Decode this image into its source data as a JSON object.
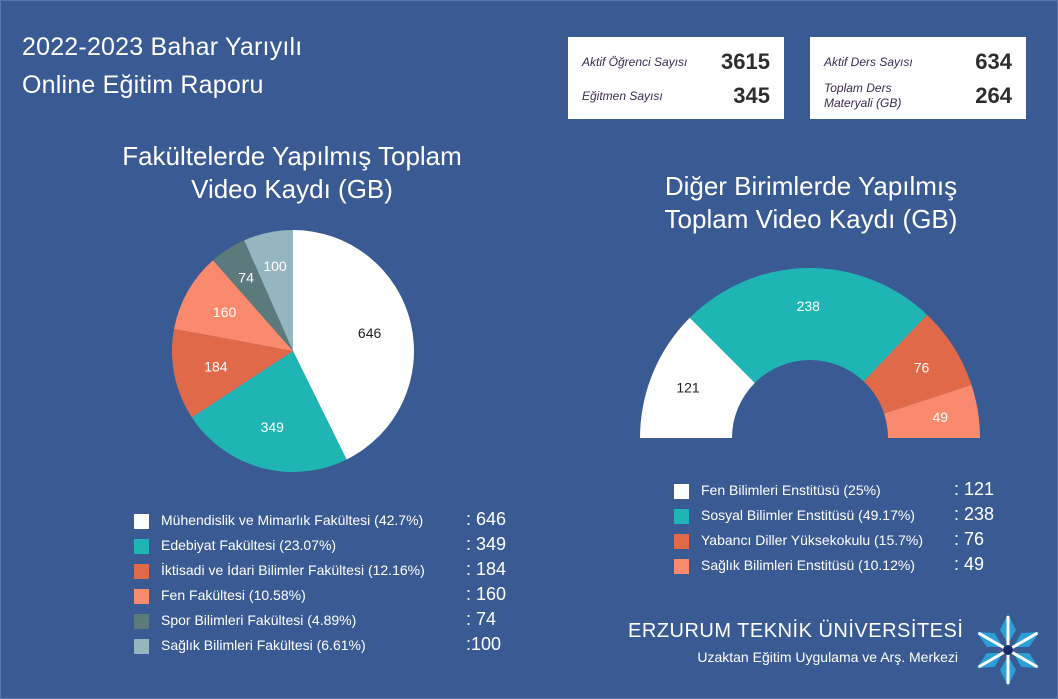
{
  "header": {
    "title_line1": "2022-2023 Bahar Yarıyılı",
    "title_line2": "Online Eğitim Raporu"
  },
  "stats_left": [
    {
      "label": "Aktif Öğrenci Sayısı",
      "value": "3615"
    },
    {
      "label": "Eğitmen Sayısı",
      "value": "345"
    }
  ],
  "stats_right": [
    {
      "label": "Aktif Ders Sayısı",
      "value": "634"
    },
    {
      "label": "Toplam Ders Materyali (GB)",
      "value": "264"
    }
  ],
  "branding": {
    "name": "ERZURUM TEKNİK ÜNİVERSİTESİ",
    "sub": "Uzaktan Eğitim Uygulama ve Arş. Merkezi",
    "logo_icon": "snowflake-logo-icon"
  },
  "chart_data": [
    {
      "type": "pie",
      "title": "Fakültelerde Yapılmış Toplam Video Kaydı (GB)",
      "categories": [
        "Mühendislik ve Mimarlık Fakültesi (42.7%)",
        "Edebiyat Fakültesi (23.07%)",
        "İktisadi ve İdari Bilimler Fakültesi (12.16%)",
        "Fen Fakültesi (10.58%)",
        "Spor Bilimleri Fakültesi (4.89%)",
        "Sağlık Bilimleri Fakültesi (6.61%)"
      ],
      "values": [
        646,
        349,
        184,
        160,
        74,
        100
      ],
      "value_labels": [
        ": 646",
        ": 349",
        ": 184",
        ": 160",
        ": 74",
        ":100"
      ],
      "colors": [
        "#ffffff",
        "#1fb5b5",
        "#e0694a",
        "#f98a6e",
        "#5c7a7c",
        "#96b6bf"
      ],
      "data_label_colors": [
        "#222222",
        "#ffffff",
        "#ffffff",
        "#ffffff",
        "#ffffff",
        "#ffffff"
      ],
      "legend": "bottom"
    },
    {
      "type": "pie",
      "title": "Diğer Birimlerde Yapılmış Toplam Video Kaydı (GB)",
      "categories": [
        "Fen Bilimleri Enstitüsü (25%)",
        "Sosyal Bilimler Enstitüsü (49.17%)",
        "Yabancı Diller Yüksekokulu (15.7%)",
        "Sağlık Bilimleri Enstitüsü (10.12%)"
      ],
      "values": [
        121,
        238,
        76,
        49
      ],
      "value_labels": [
        ": 121",
        ": 238",
        ": 76",
        ": 49"
      ],
      "colors": [
        "#ffffff",
        "#1fb5b5",
        "#e0694a",
        "#f98a6e"
      ],
      "data_label_colors": [
        "#222222",
        "#ffffff",
        "#ffffff",
        "#ffffff"
      ],
      "legend": "bottom"
    }
  ]
}
